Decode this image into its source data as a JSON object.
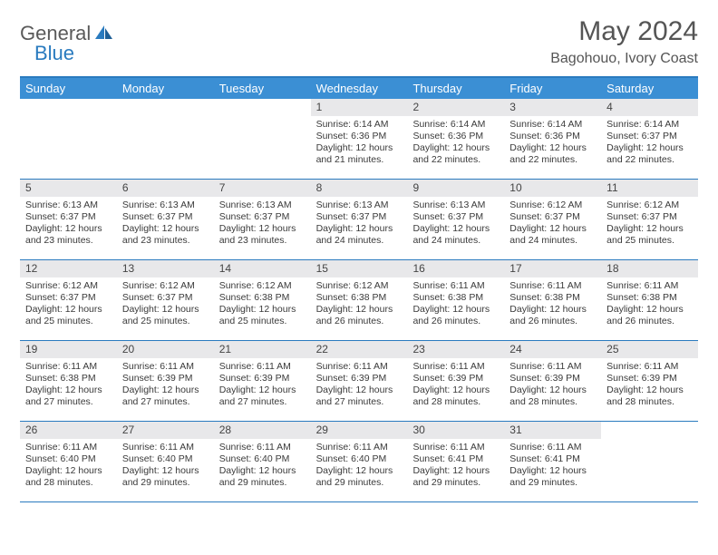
{
  "logo": {
    "word1": "General",
    "word2": "Blue"
  },
  "title": "May 2024",
  "location": "Bagohouo, Ivory Coast",
  "colors": {
    "header_bar": "#3b8fd4",
    "border": "#2a7bbf",
    "daynum_bg": "#e8e8ea",
    "text": "#3a3a3a",
    "title_text": "#555"
  },
  "day_headers": [
    "Sunday",
    "Monday",
    "Tuesday",
    "Wednesday",
    "Thursday",
    "Friday",
    "Saturday"
  ],
  "weeks": [
    [
      {
        "empty": true
      },
      {
        "empty": true
      },
      {
        "empty": true
      },
      {
        "num": "1",
        "sunrise": "Sunrise: 6:14 AM",
        "sunset": "Sunset: 6:36 PM",
        "day1": "Daylight: 12 hours",
        "day2": "and 21 minutes."
      },
      {
        "num": "2",
        "sunrise": "Sunrise: 6:14 AM",
        "sunset": "Sunset: 6:36 PM",
        "day1": "Daylight: 12 hours",
        "day2": "and 22 minutes."
      },
      {
        "num": "3",
        "sunrise": "Sunrise: 6:14 AM",
        "sunset": "Sunset: 6:36 PM",
        "day1": "Daylight: 12 hours",
        "day2": "and 22 minutes."
      },
      {
        "num": "4",
        "sunrise": "Sunrise: 6:14 AM",
        "sunset": "Sunset: 6:37 PM",
        "day1": "Daylight: 12 hours",
        "day2": "and 22 minutes."
      }
    ],
    [
      {
        "num": "5",
        "sunrise": "Sunrise: 6:13 AM",
        "sunset": "Sunset: 6:37 PM",
        "day1": "Daylight: 12 hours",
        "day2": "and 23 minutes."
      },
      {
        "num": "6",
        "sunrise": "Sunrise: 6:13 AM",
        "sunset": "Sunset: 6:37 PM",
        "day1": "Daylight: 12 hours",
        "day2": "and 23 minutes."
      },
      {
        "num": "7",
        "sunrise": "Sunrise: 6:13 AM",
        "sunset": "Sunset: 6:37 PM",
        "day1": "Daylight: 12 hours",
        "day2": "and 23 minutes."
      },
      {
        "num": "8",
        "sunrise": "Sunrise: 6:13 AM",
        "sunset": "Sunset: 6:37 PM",
        "day1": "Daylight: 12 hours",
        "day2": "and 24 minutes."
      },
      {
        "num": "9",
        "sunrise": "Sunrise: 6:13 AM",
        "sunset": "Sunset: 6:37 PM",
        "day1": "Daylight: 12 hours",
        "day2": "and 24 minutes."
      },
      {
        "num": "10",
        "sunrise": "Sunrise: 6:12 AM",
        "sunset": "Sunset: 6:37 PM",
        "day1": "Daylight: 12 hours",
        "day2": "and 24 minutes."
      },
      {
        "num": "11",
        "sunrise": "Sunrise: 6:12 AM",
        "sunset": "Sunset: 6:37 PM",
        "day1": "Daylight: 12 hours",
        "day2": "and 25 minutes."
      }
    ],
    [
      {
        "num": "12",
        "sunrise": "Sunrise: 6:12 AM",
        "sunset": "Sunset: 6:37 PM",
        "day1": "Daylight: 12 hours",
        "day2": "and 25 minutes."
      },
      {
        "num": "13",
        "sunrise": "Sunrise: 6:12 AM",
        "sunset": "Sunset: 6:37 PM",
        "day1": "Daylight: 12 hours",
        "day2": "and 25 minutes."
      },
      {
        "num": "14",
        "sunrise": "Sunrise: 6:12 AM",
        "sunset": "Sunset: 6:38 PM",
        "day1": "Daylight: 12 hours",
        "day2": "and 25 minutes."
      },
      {
        "num": "15",
        "sunrise": "Sunrise: 6:12 AM",
        "sunset": "Sunset: 6:38 PM",
        "day1": "Daylight: 12 hours",
        "day2": "and 26 minutes."
      },
      {
        "num": "16",
        "sunrise": "Sunrise: 6:11 AM",
        "sunset": "Sunset: 6:38 PM",
        "day1": "Daylight: 12 hours",
        "day2": "and 26 minutes."
      },
      {
        "num": "17",
        "sunrise": "Sunrise: 6:11 AM",
        "sunset": "Sunset: 6:38 PM",
        "day1": "Daylight: 12 hours",
        "day2": "and 26 minutes."
      },
      {
        "num": "18",
        "sunrise": "Sunrise: 6:11 AM",
        "sunset": "Sunset: 6:38 PM",
        "day1": "Daylight: 12 hours",
        "day2": "and 26 minutes."
      }
    ],
    [
      {
        "num": "19",
        "sunrise": "Sunrise: 6:11 AM",
        "sunset": "Sunset: 6:38 PM",
        "day1": "Daylight: 12 hours",
        "day2": "and 27 minutes."
      },
      {
        "num": "20",
        "sunrise": "Sunrise: 6:11 AM",
        "sunset": "Sunset: 6:39 PM",
        "day1": "Daylight: 12 hours",
        "day2": "and 27 minutes."
      },
      {
        "num": "21",
        "sunrise": "Sunrise: 6:11 AM",
        "sunset": "Sunset: 6:39 PM",
        "day1": "Daylight: 12 hours",
        "day2": "and 27 minutes."
      },
      {
        "num": "22",
        "sunrise": "Sunrise: 6:11 AM",
        "sunset": "Sunset: 6:39 PM",
        "day1": "Daylight: 12 hours",
        "day2": "and 27 minutes."
      },
      {
        "num": "23",
        "sunrise": "Sunrise: 6:11 AM",
        "sunset": "Sunset: 6:39 PM",
        "day1": "Daylight: 12 hours",
        "day2": "and 28 minutes."
      },
      {
        "num": "24",
        "sunrise": "Sunrise: 6:11 AM",
        "sunset": "Sunset: 6:39 PM",
        "day1": "Daylight: 12 hours",
        "day2": "and 28 minutes."
      },
      {
        "num": "25",
        "sunrise": "Sunrise: 6:11 AM",
        "sunset": "Sunset: 6:39 PM",
        "day1": "Daylight: 12 hours",
        "day2": "and 28 minutes."
      }
    ],
    [
      {
        "num": "26",
        "sunrise": "Sunrise: 6:11 AM",
        "sunset": "Sunset: 6:40 PM",
        "day1": "Daylight: 12 hours",
        "day2": "and 28 minutes."
      },
      {
        "num": "27",
        "sunrise": "Sunrise: 6:11 AM",
        "sunset": "Sunset: 6:40 PM",
        "day1": "Daylight: 12 hours",
        "day2": "and 29 minutes."
      },
      {
        "num": "28",
        "sunrise": "Sunrise: 6:11 AM",
        "sunset": "Sunset: 6:40 PM",
        "day1": "Daylight: 12 hours",
        "day2": "and 29 minutes."
      },
      {
        "num": "29",
        "sunrise": "Sunrise: 6:11 AM",
        "sunset": "Sunset: 6:40 PM",
        "day1": "Daylight: 12 hours",
        "day2": "and 29 minutes."
      },
      {
        "num": "30",
        "sunrise": "Sunrise: 6:11 AM",
        "sunset": "Sunset: 6:41 PM",
        "day1": "Daylight: 12 hours",
        "day2": "and 29 minutes."
      },
      {
        "num": "31",
        "sunrise": "Sunrise: 6:11 AM",
        "sunset": "Sunset: 6:41 PM",
        "day1": "Daylight: 12 hours",
        "day2": "and 29 minutes."
      },
      {
        "empty": true
      }
    ]
  ]
}
